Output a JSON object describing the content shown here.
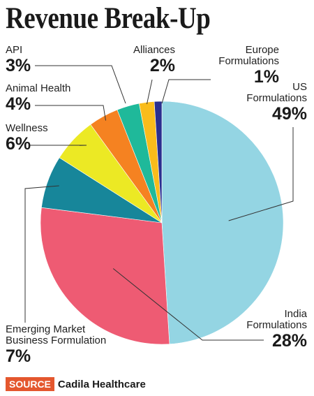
{
  "chart_data": {
    "type": "pie",
    "title": "Revenue Break-Up",
    "slices": [
      {
        "label": "US Formulations",
        "value": 49,
        "pct_text": "49%",
        "color": "#94d5e3"
      },
      {
        "label": "India Formulations",
        "value": 28,
        "pct_text": "28%",
        "color": "#ee5b73"
      },
      {
        "label": "Emerging Market Business Formulation",
        "value": 7,
        "pct_text": "7%",
        "color": "#17869a"
      },
      {
        "label": "Wellness",
        "value": 6,
        "pct_text": "6%",
        "color": "#ece924"
      },
      {
        "label": "Animal Health",
        "value": 4,
        "pct_text": "4%",
        "color": "#f58221"
      },
      {
        "label": "API",
        "value": 3,
        "pct_text": "3%",
        "color": "#1fb99a"
      },
      {
        "label": "Alliances",
        "value": 2,
        "pct_text": "2%",
        "color": "#f9bc1b"
      },
      {
        "label": "Europe Formulations",
        "value": 1,
        "pct_text": "1%",
        "color": "#2a2f8f"
      }
    ]
  },
  "labels": {
    "us": {
      "line1": "US",
      "line2": "Formulations",
      "pct": "49%"
    },
    "india": {
      "line1": "India",
      "line2": "Formulations",
      "pct": "28%"
    },
    "emerging": {
      "line1": "Emerging Market",
      "line2": "Business Formulation",
      "pct": "7%"
    },
    "wellness": {
      "line1": "Wellness",
      "pct": "6%"
    },
    "animal": {
      "line1": "Animal Health",
      "pct": "4%"
    },
    "api": {
      "line1": "API",
      "pct": "3%"
    },
    "alliances": {
      "line1": "Alliances",
      "pct": "2%"
    },
    "europe": {
      "line1": "Europe",
      "line2": "Formulations",
      "pct": "1%"
    }
  },
  "source": {
    "tag": "SOURCE",
    "org": "Cadila Healthcare"
  }
}
